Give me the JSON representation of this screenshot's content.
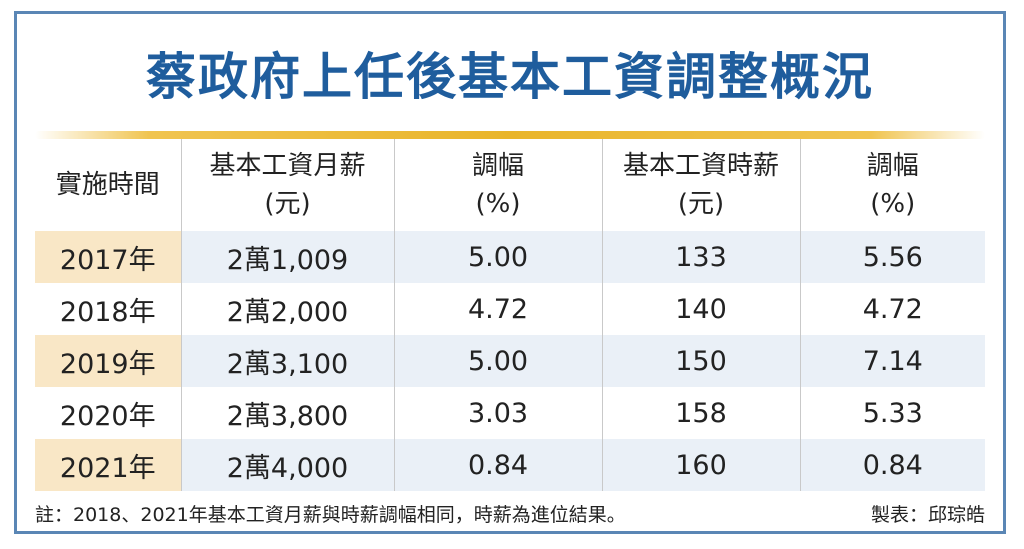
{
  "title": "蔡政府上任後基本工資調整概況",
  "table": {
    "headers": [
      {
        "line1": "實施時間",
        "line2": ""
      },
      {
        "line1": "基本工資月薪",
        "line2": "(元)"
      },
      {
        "line1": "調幅",
        "line2": "(%)"
      },
      {
        "line1": "基本工資時薪",
        "line2": "(元)"
      },
      {
        "line1": "調幅",
        "line2": "(%)"
      }
    ],
    "rows": [
      [
        "2017年",
        "2萬1,009",
        "5.00",
        "133",
        "5.56"
      ],
      [
        "2018年",
        "2萬2,000",
        "4.72",
        "140",
        "4.72"
      ],
      [
        "2019年",
        "2萬3,100",
        "5.00",
        "150",
        "7.14"
      ],
      [
        "2020年",
        "2萬3,800",
        "3.03",
        "158",
        "5.33"
      ],
      [
        "2021年",
        "2萬4,000",
        "0.84",
        "160",
        "0.84"
      ]
    ]
  },
  "footer": {
    "note": "註：2018、2021年基本工資月薪與時薪調幅相同，時薪為進位結果。",
    "credit": "製表：邱琮皓"
  },
  "colors": {
    "title": "#1f5d9d",
    "frame": "#5a86b5",
    "rule": "#e9b52a",
    "row_shade": "#eaf0f7",
    "year_shade": "#f9e7c6"
  }
}
